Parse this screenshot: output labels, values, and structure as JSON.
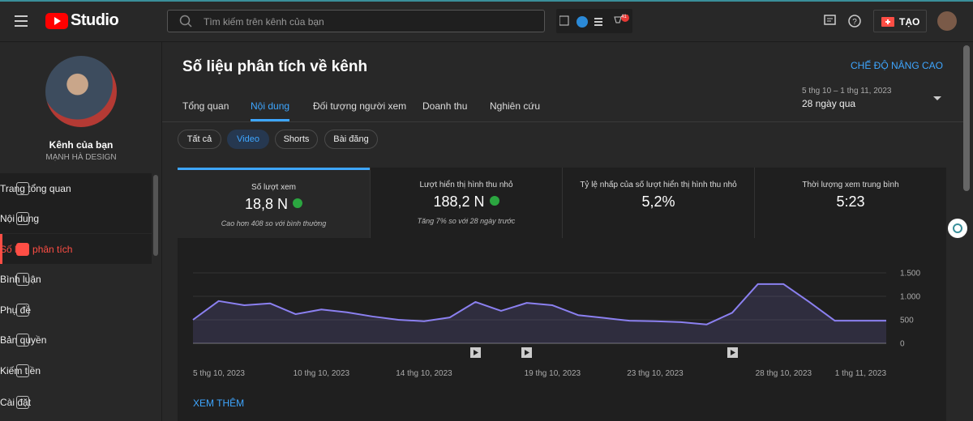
{
  "header": {
    "logo": "Studio",
    "search_placeholder": "Tìm kiếm trên kênh của bạn",
    "notification_count": "41",
    "create_button": "TẠO"
  },
  "sidebar": {
    "channel_title": "Kênh của bạn",
    "channel_name": "MẠNH HÀ DESIGN",
    "nav": [
      "Trang tổng quan",
      "Nội dung",
      "Số liệu phân tích",
      "Bình luận",
      "Phụ đề",
      "Bản quyền",
      "Kiếm tiền",
      "Cài đặt"
    ],
    "active_nav": 2
  },
  "page": {
    "title": "Số liệu phân tích về kênh",
    "advanced_mode": "CHẾ ĐỘ NÂNG CAO",
    "date_range": "5 thg 10 – 1 thg 11, 2023",
    "date_period": "28 ngày qua",
    "tabs": [
      "Tổng quan",
      "Nội dung",
      "Đối tượng người xem",
      "Doanh thu",
      "Nghiên cứu"
    ],
    "active_tab": 1,
    "chips": [
      "Tất cả",
      "Video",
      "Shorts",
      "Bài đăng"
    ],
    "active_chip": 1
  },
  "metrics": [
    {
      "label": "Số lượt xem",
      "value": "18,8 N",
      "note": "Cao hơn 408 so với bình thường"
    },
    {
      "label": "Lượt hiển thị hình thu nhỏ",
      "value": "188,2 N",
      "note": "Tăng 7% so với 28 ngày trước"
    },
    {
      "label": "Tỷ lệ nhấp của số lượt hiển thị hình thu nhỏ",
      "value": "5,2%"
    },
    {
      "label": "Thời lượng xem trung bình",
      "value": "5:23"
    }
  ],
  "chart_data": {
    "type": "line",
    "categories": [
      "5 thg 10, 2023",
      null,
      null,
      null,
      null,
      "10 thg 10, 2023",
      null,
      null,
      null,
      "14 thg 10, 2023",
      null,
      null,
      null,
      null,
      "19 thg 10, 2023",
      null,
      null,
      null,
      "23 thg 10, 2023",
      null,
      null,
      null,
      null,
      "28 thg 10, 2023",
      null,
      null,
      null,
      "1 thg 11, 2023"
    ],
    "values": [
      500,
      900,
      810,
      850,
      620,
      720,
      660,
      570,
      500,
      470,
      550,
      880,
      690,
      860,
      810,
      600,
      540,
      480,
      470,
      450,
      400,
      650,
      1260,
      1260,
      880,
      480,
      480,
      480
    ],
    "color": "#8b80f0",
    "ylim": [
      0,
      1500
    ],
    "yticks": [
      0,
      500,
      {
        "value": 1000,
        "label": "1.000"
      },
      {
        "value": 1500,
        "label": "1.500"
      }
    ],
    "grid": true
  },
  "see_more": "XEM THÊM"
}
